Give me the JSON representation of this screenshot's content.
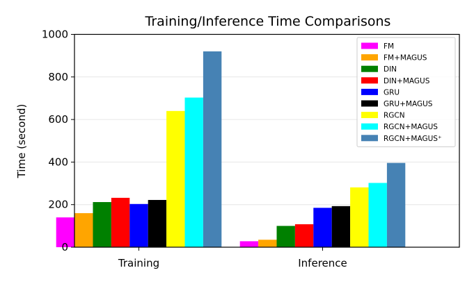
{
  "chart_data": {
    "type": "bar",
    "title": "Training/Inference Time Comparisons",
    "xlabel": "",
    "ylabel": "Time (second)",
    "ylim": [
      0,
      1000
    ],
    "yticks": [
      "0",
      "200",
      "400",
      "600",
      "800",
      "1000"
    ],
    "grid": "horizontal",
    "legend_position": "top-right",
    "categories": [
      "Training",
      "Inference"
    ],
    "series": [
      {
        "name": "FM",
        "color": "#ff00ff",
        "values": [
          140,
          28
        ]
      },
      {
        "name": "FM+MAGUS",
        "color": "#ffa500",
        "values": [
          160,
          35
        ]
      },
      {
        "name": "DIN",
        "color": "#008000",
        "values": [
          212,
          100
        ]
      },
      {
        "name": "DIN+MAGUS",
        "color": "#ff0000",
        "values": [
          232,
          108
        ]
      },
      {
        "name": "GRU",
        "color": "#0000ff",
        "values": [
          203,
          185
        ]
      },
      {
        "name": "GRU+MAGUS",
        "color": "#000000",
        "values": [
          222,
          193
        ]
      },
      {
        "name": "RGCN",
        "color": "#ffff00",
        "values": [
          640,
          281
        ]
      },
      {
        "name": "RGCN+MAGUS",
        "color": "#00ffff",
        "values": [
          703,
          302
        ]
      },
      {
        "name": "RGCN+MAGUS⁺",
        "color": "#4682b4",
        "values": [
          920,
          396
        ]
      }
    ]
  }
}
